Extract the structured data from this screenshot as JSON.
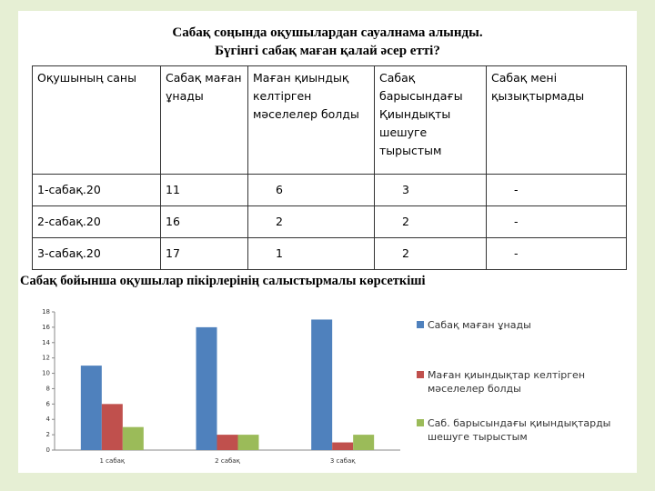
{
  "title": [
    "Сабақ соңында оқушылардан сауалнама алынды.",
    "Бүгінгі сабақ маған қалай әсер етті?"
  ],
  "table": {
    "header": [
      "Оқушының саны",
      "Сабақ маған ұнады",
      "Маған қиындық келтірген мәселелер болды",
      "Сабақ барысындағы Қиындықты шешуге тырыстым",
      "Сабақ мені қызықтырмады"
    ],
    "rows": [
      [
        "1-сабақ.20",
        "11",
        "6",
        "3",
        "-"
      ],
      [
        "2-сабақ.20",
        "16",
        "2",
        "2",
        "-"
      ],
      [
        "3-сабақ.20",
        "17",
        "1",
        "2",
        "-"
      ]
    ]
  },
  "chart_title": "Сабақ бойынша  оқушылар пікірлерінің салыстырмалы көрсеткіші",
  "chart_data": {
    "type": "bar",
    "categories": [
      "1 сабақ",
      "2 сабақ",
      "3 сабақ"
    ],
    "series": [
      {
        "name": "Сабақ маған ұнады",
        "color": "#4f81bd",
        "values": [
          11,
          16,
          17
        ]
      },
      {
        "name": "Маған  қиындықтар келтірген мәселелер болды",
        "color": "#c0504d",
        "values": [
          6,
          2,
          1
        ]
      },
      {
        "name": "Саб. барысындағы қиындықтарды шешуге тырыстым",
        "color": "#9bbb59",
        "values": [
          3,
          2,
          2
        ]
      }
    ],
    "ylim": [
      0,
      18
    ],
    "yticks": [
      0,
      2,
      4,
      6,
      8,
      10,
      12,
      14,
      16,
      18
    ],
    "grid": false,
    "legend": "right"
  }
}
